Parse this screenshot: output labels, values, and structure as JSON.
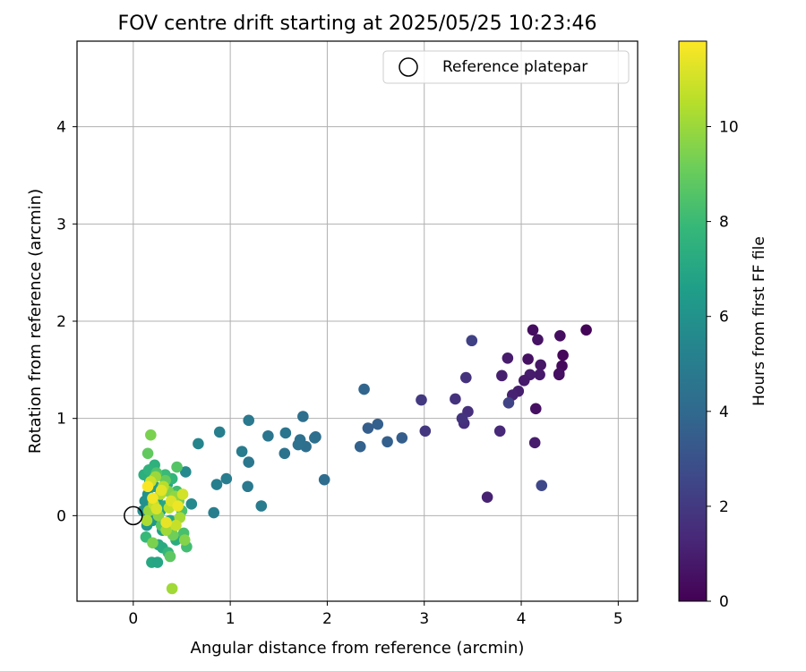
{
  "chart_data": {
    "type": "scatter",
    "title": "FOV centre drift starting at 2025/05/25 10:23:46",
    "xlabel": "Angular distance from reference (arcmin)",
    "ylabel": "Rotation from reference (arcmin)",
    "xlim": [
      -0.58,
      5.2
    ],
    "ylim": [
      -0.88,
      4.88
    ],
    "xticks": [
      "0",
      "1",
      "2",
      "3",
      "4",
      "5"
    ],
    "yticks": [
      "0",
      "1",
      "2",
      "3",
      "4"
    ],
    "grid": true,
    "legend": {
      "placement": "upper-right",
      "label": "Reference platepar"
    },
    "reference_point": {
      "x": 0,
      "y": 0
    },
    "colorbar": {
      "label": "Hours from first FF file",
      "colormap": "viridis",
      "range": [
        0,
        11.8
      ],
      "ticks": [
        "0",
        "2",
        "4",
        "6",
        "8",
        "10"
      ],
      "stops": [
        "#440154",
        "#482878",
        "#3e4989",
        "#31688e",
        "#26828e",
        "#1f9e89",
        "#35b779",
        "#6ece58",
        "#b5de2b",
        "#fde725"
      ]
    },
    "series": [
      {
        "points": [
          [
            4.67,
            1.91,
            0.1
          ],
          [
            4.43,
            1.65,
            0.2
          ],
          [
            4.42,
            1.54,
            0.3
          ],
          [
            4.4,
            1.85,
            0.4
          ],
          [
            4.39,
            1.45,
            0.3
          ],
          [
            4.39,
            1.46,
            0.5
          ],
          [
            4.17,
            1.81,
            0.6
          ],
          [
            4.12,
            1.91,
            0.4
          ],
          [
            4.2,
            1.55,
            0.7
          ],
          [
            4.07,
            1.61,
            0.5
          ],
          [
            4.19,
            1.45,
            0.8
          ],
          [
            4.09,
            1.45,
            0.9
          ],
          [
            4.03,
            1.39,
            0.8
          ],
          [
            3.97,
            1.28,
            1.0
          ],
          [
            3.91,
            1.24,
            1.1
          ],
          [
            3.86,
            1.62,
            0.9
          ],
          [
            4.15,
            1.1,
            0.5
          ],
          [
            3.8,
            1.44,
            1.0
          ],
          [
            4.14,
            0.75,
            0.9
          ],
          [
            3.78,
            0.87,
            1.3
          ],
          [
            3.87,
            1.16,
            2.4
          ],
          [
            4.21,
            0.31,
            2.6
          ],
          [
            3.65,
            0.19,
            1.1
          ],
          [
            3.49,
            1.8,
            2.3
          ],
          [
            3.43,
            1.42,
            1.7
          ],
          [
            3.45,
            1.07,
            1.6
          ],
          [
            3.41,
            0.95,
            1.6
          ],
          [
            3.39,
            1.0,
            1.8
          ],
          [
            3.32,
            1.2,
            1.7
          ],
          [
            3.01,
            0.87,
            1.9
          ],
          [
            2.97,
            1.19,
            2.0
          ],
          [
            2.77,
            0.8,
            3.5
          ],
          [
            2.62,
            0.76,
            3.6
          ],
          [
            2.52,
            0.94,
            3.6
          ],
          [
            2.42,
            0.9,
            3.5
          ],
          [
            2.38,
            1.3,
            3.8
          ],
          [
            2.34,
            0.71,
            3.7
          ],
          [
            1.97,
            0.37,
            4.2
          ],
          [
            1.88,
            0.81,
            4.2
          ],
          [
            1.87,
            0.8,
            4.3
          ],
          [
            1.78,
            0.71,
            4.3
          ],
          [
            1.75,
            1.02,
            4.3
          ],
          [
            1.72,
            0.78,
            4.4
          ],
          [
            1.7,
            0.73,
            4.4
          ],
          [
            1.57,
            0.85,
            4.6
          ],
          [
            1.56,
            0.64,
            4.5
          ],
          [
            1.39,
            0.82,
            4.6
          ],
          [
            1.32,
            0.1,
            4.9
          ],
          [
            1.19,
            0.98,
            4.8
          ],
          [
            1.19,
            0.55,
            4.7
          ],
          [
            1.18,
            0.3,
            4.8
          ],
          [
            1.12,
            0.66,
            4.9
          ],
          [
            0.96,
            0.38,
            5.0
          ],
          [
            0.89,
            0.86,
            5.1
          ],
          [
            0.86,
            0.32,
            5.1
          ],
          [
            0.83,
            0.03,
            5.1
          ],
          [
            0.67,
            0.74,
            5.4
          ],
          [
            0.6,
            0.12,
            5.6
          ],
          [
            0.54,
            0.45,
            5.6
          ],
          [
            0.1,
            0.05,
            5.8
          ],
          [
            0.12,
            0.15,
            5.9
          ],
          [
            0.15,
            0.22,
            6.0
          ],
          [
            0.18,
            0.1,
            6.1
          ],
          [
            0.2,
            -0.05,
            6.2
          ],
          [
            0.14,
            -0.1,
            6.3
          ],
          [
            0.22,
            0.3,
            6.4
          ],
          [
            0.25,
            0.18,
            6.5
          ],
          [
            0.28,
            0.05,
            6.6
          ],
          [
            0.3,
            -0.15,
            6.7
          ],
          [
            0.17,
            0.35,
            6.8
          ],
          [
            0.35,
            0.32,
            6.9
          ],
          [
            0.38,
            -0.05,
            7.0
          ],
          [
            0.32,
            0.1,
            7.0
          ],
          [
            0.26,
            -0.3,
            7.1
          ],
          [
            0.19,
            -0.48,
            7.1
          ],
          [
            0.25,
            -0.48,
            7.0
          ],
          [
            0.3,
            -0.33,
            7.2
          ],
          [
            0.42,
            0.18,
            7.3
          ],
          [
            0.44,
            -0.25,
            7.3
          ],
          [
            0.11,
            0.42,
            7.4
          ],
          [
            0.22,
            0.52,
            7.5
          ],
          [
            0.16,
            0.47,
            7.6
          ],
          [
            0.4,
            0.38,
            7.7
          ],
          [
            0.36,
            -0.38,
            7.8
          ],
          [
            0.13,
            -0.22,
            7.9
          ],
          [
            0.33,
            0.42,
            8.0
          ],
          [
            0.45,
            0.25,
            8.1
          ],
          [
            0.55,
            -0.32,
            8.2
          ],
          [
            0.52,
            -0.18,
            8.3
          ],
          [
            0.5,
            0.05,
            8.4
          ],
          [
            0.24,
            0.44,
            8.5
          ],
          [
            0.45,
            0.5,
            8.6
          ],
          [
            0.29,
            -0.1,
            8.7
          ],
          [
            0.38,
            -0.42,
            8.8
          ],
          [
            0.15,
            0.64,
            8.9
          ],
          [
            0.33,
            0.36,
            9.0
          ],
          [
            0.18,
            0.83,
            9.4
          ],
          [
            0.41,
            -0.2,
            9.2
          ],
          [
            0.47,
            0.15,
            9.3
          ],
          [
            0.2,
            -0.28,
            9.4
          ],
          [
            0.36,
            0.25,
            9.5
          ],
          [
            0.53,
            -0.25,
            9.6
          ],
          [
            0.26,
            0.0,
            9.7
          ],
          [
            0.4,
            -0.75,
            10.1
          ],
          [
            0.43,
            0.2,
            9.8
          ],
          [
            0.16,
            0.05,
            9.9
          ],
          [
            0.23,
            0.4,
            10.0
          ],
          [
            0.34,
            -0.15,
            10.1
          ],
          [
            0.48,
            -0.02,
            10.2
          ],
          [
            0.14,
            -0.05,
            10.3
          ],
          [
            0.28,
            0.22,
            10.4
          ],
          [
            0.31,
            0.3,
            10.5
          ],
          [
            0.37,
            0.08,
            10.6
          ],
          [
            0.21,
            0.12,
            10.7
          ],
          [
            0.44,
            -0.1,
            10.8
          ],
          [
            0.18,
            0.35,
            10.9
          ],
          [
            0.51,
            0.22,
            11.0
          ],
          [
            0.24,
            0.07,
            11.1
          ],
          [
            0.39,
            0.15,
            11.2
          ],
          [
            0.29,
            0.26,
            11.3
          ],
          [
            0.34,
            -0.07,
            11.4
          ],
          [
            0.46,
            0.1,
            11.5
          ],
          [
            0.2,
            0.18,
            11.6
          ],
          [
            0.15,
            0.3,
            11.7
          ]
        ]
      }
    ]
  }
}
